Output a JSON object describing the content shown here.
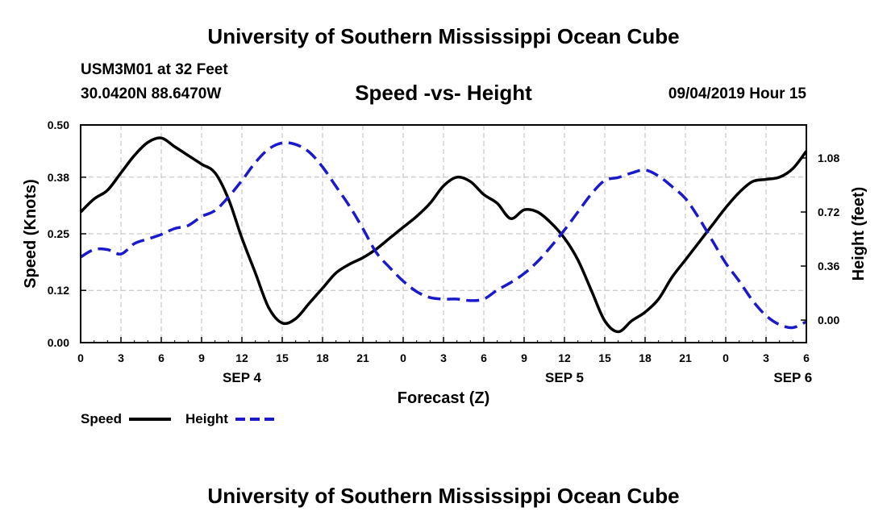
{
  "header": {
    "title": "University of Southern Mississippi Ocean Cube",
    "station": "USM3M01 at 32 Feet",
    "coords": "30.0420N 88.6470W",
    "datetime": "09/04/2019 Hour 15"
  },
  "footer": {
    "title": "University of Southern Mississippi Ocean Cube"
  },
  "colors": {
    "speed": "#000000",
    "height": "#1a1acc",
    "grid": "#bbbbbb"
  },
  "chart_data": {
    "type": "line",
    "title": "Speed -vs- Height",
    "xlabel": "Forecast (Z)",
    "ylabel": "Speed (Knots)",
    "y2label": "Height (feet)",
    "xlim": [
      0,
      54
    ],
    "ylim": [
      0,
      0.5
    ],
    "y2lim": [
      -0.15,
      1.3
    ],
    "grid": true,
    "x_ticks": [
      0,
      3,
      6,
      9,
      12,
      15,
      18,
      21,
      24,
      27,
      30,
      33,
      36,
      39,
      42,
      45,
      48,
      51,
      54
    ],
    "x_tick_labels": [
      "0",
      "3",
      "6",
      "9",
      "12",
      "15",
      "18",
      "21",
      "0",
      "3",
      "6",
      "9",
      "12",
      "15",
      "18",
      "21",
      "0",
      "3",
      "6"
    ],
    "date_labels": [
      {
        "x": 12,
        "label": "SEP 4"
      },
      {
        "x": 36,
        "label": "SEP 5"
      },
      {
        "x": 53,
        "label": "SEP 6"
      }
    ],
    "y_ticks": [
      0.0,
      0.12,
      0.25,
      0.38,
      0.5
    ],
    "y_tick_labels": [
      "0.00",
      "0.12",
      "0.25",
      "0.38",
      "0.50"
    ],
    "y2_ticks": [
      0.0,
      0.36,
      0.72,
      1.08
    ],
    "y2_tick_labels": [
      "0.00",
      "0.36",
      "0.72",
      "1.08"
    ],
    "legend": [
      {
        "name": "Speed",
        "style": "solid"
      },
      {
        "name": "Height",
        "style": "dashed"
      }
    ],
    "series": [
      {
        "name": "Speed",
        "axis": "left",
        "x": [
          0,
          1,
          2,
          3,
          4,
          5,
          6,
          7,
          8,
          9,
          10,
          11,
          12,
          13,
          14,
          15,
          16,
          17,
          18,
          19,
          20,
          21,
          22,
          23,
          24,
          25,
          26,
          27,
          28,
          29,
          30,
          31,
          32,
          33,
          34,
          35,
          36,
          37,
          38,
          39,
          40,
          41,
          42,
          43,
          44,
          45,
          46,
          47,
          48,
          49,
          50,
          51,
          52,
          53,
          54
        ],
        "values": [
          0.3,
          0.33,
          0.35,
          0.39,
          0.43,
          0.46,
          0.47,
          0.45,
          0.43,
          0.41,
          0.39,
          0.33,
          0.24,
          0.16,
          0.08,
          0.045,
          0.055,
          0.09,
          0.125,
          0.16,
          0.18,
          0.195,
          0.215,
          0.24,
          0.265,
          0.29,
          0.32,
          0.36,
          0.38,
          0.37,
          0.34,
          0.32,
          0.285,
          0.305,
          0.3,
          0.275,
          0.24,
          0.19,
          0.12,
          0.05,
          0.025,
          0.05,
          0.07,
          0.1,
          0.15,
          0.19,
          0.23,
          0.27,
          0.31,
          0.345,
          0.37,
          0.375,
          0.38,
          0.4,
          0.44
        ]
      },
      {
        "name": "Height",
        "axis": "right",
        "x": [
          0,
          1,
          2,
          3,
          4,
          5,
          6,
          7,
          8,
          9,
          10,
          11,
          12,
          13,
          14,
          15,
          16,
          17,
          18,
          19,
          20,
          21,
          22,
          23,
          24,
          25,
          26,
          27,
          28,
          29,
          30,
          31,
          32,
          33,
          34,
          35,
          36,
          37,
          38,
          39,
          40,
          41,
          42,
          43,
          44,
          45,
          46,
          47,
          48,
          49,
          50,
          51,
          52,
          53,
          54
        ],
        "values": [
          0.42,
          0.47,
          0.47,
          0.44,
          0.51,
          0.54,
          0.57,
          0.61,
          0.63,
          0.69,
          0.73,
          0.82,
          0.93,
          1.05,
          1.14,
          1.18,
          1.17,
          1.12,
          1.02,
          0.89,
          0.76,
          0.61,
          0.45,
          0.35,
          0.26,
          0.19,
          0.15,
          0.14,
          0.14,
          0.13,
          0.14,
          0.2,
          0.25,
          0.31,
          0.39,
          0.49,
          0.6,
          0.72,
          0.84,
          0.93,
          0.95,
          0.98,
          1.0,
          0.96,
          0.89,
          0.81,
          0.68,
          0.53,
          0.38,
          0.26,
          0.13,
          0.03,
          -0.03,
          -0.05,
          -0.01
        ]
      }
    ]
  }
}
